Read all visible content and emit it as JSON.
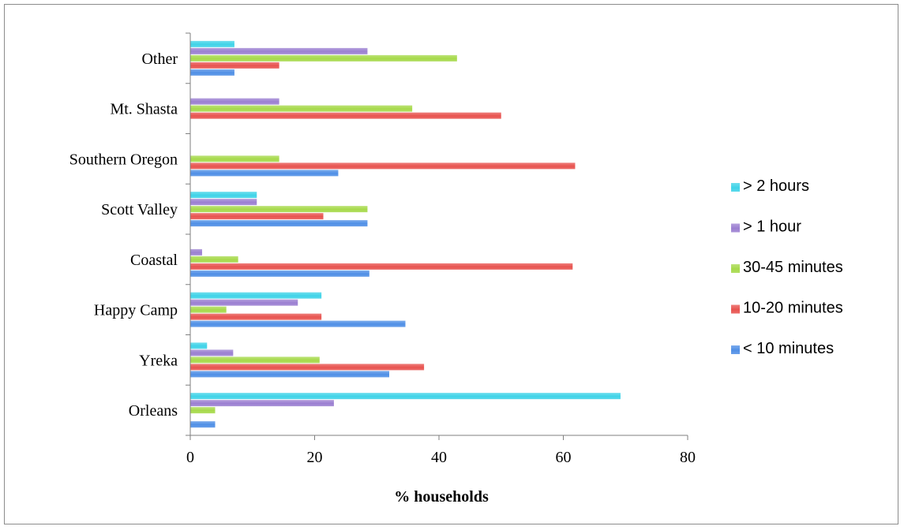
{
  "chart_data": {
    "type": "bar",
    "orientation": "horizontal",
    "categories": [
      "Orleans",
      "Yreka",
      "Happy Camp",
      "Coastal",
      "Scott Valley",
      "Southern Oregon",
      "Mt. Shasta",
      "Other"
    ],
    "series": [
      {
        "name": "< 10 minutes",
        "color": "#4f8fe6",
        "values": [
          4,
          32,
          34.6,
          28.8,
          28.5,
          23.8,
          0,
          7.1
        ]
      },
      {
        "name": "10-20 minutes",
        "color": "#e8534f",
        "values": [
          0,
          37.6,
          21.1,
          61.5,
          21.4,
          61.9,
          50,
          14.3
        ]
      },
      {
        "name": "30-45 minutes",
        "color": "#a6d94a",
        "values": [
          4,
          20.8,
          5.8,
          7.7,
          28.5,
          14.3,
          35.7,
          42.9
        ]
      },
      {
        "name": "> 1 hour",
        "color": "#9b7fd1",
        "values": [
          23.1,
          6.9,
          17.3,
          1.9,
          10.7,
          0,
          14.3,
          28.5
        ]
      },
      {
        "name": "> 2 hours",
        "color": "#3fd3e8",
        "values": [
          69.2,
          2.7,
          21.1,
          0,
          10.7,
          0,
          0,
          7.1
        ]
      }
    ],
    "xlabel": "% households",
    "ylabel": "",
    "xlim": [
      0,
      80
    ],
    "xticks": [
      0,
      20,
      40,
      60,
      80
    ],
    "legend": {
      "position": "right",
      "order": [
        "> 2 hours",
        "> 1 hour",
        "30-45 minutes",
        "10-20 minutes",
        "< 10 minutes"
      ]
    },
    "grid": false
  }
}
